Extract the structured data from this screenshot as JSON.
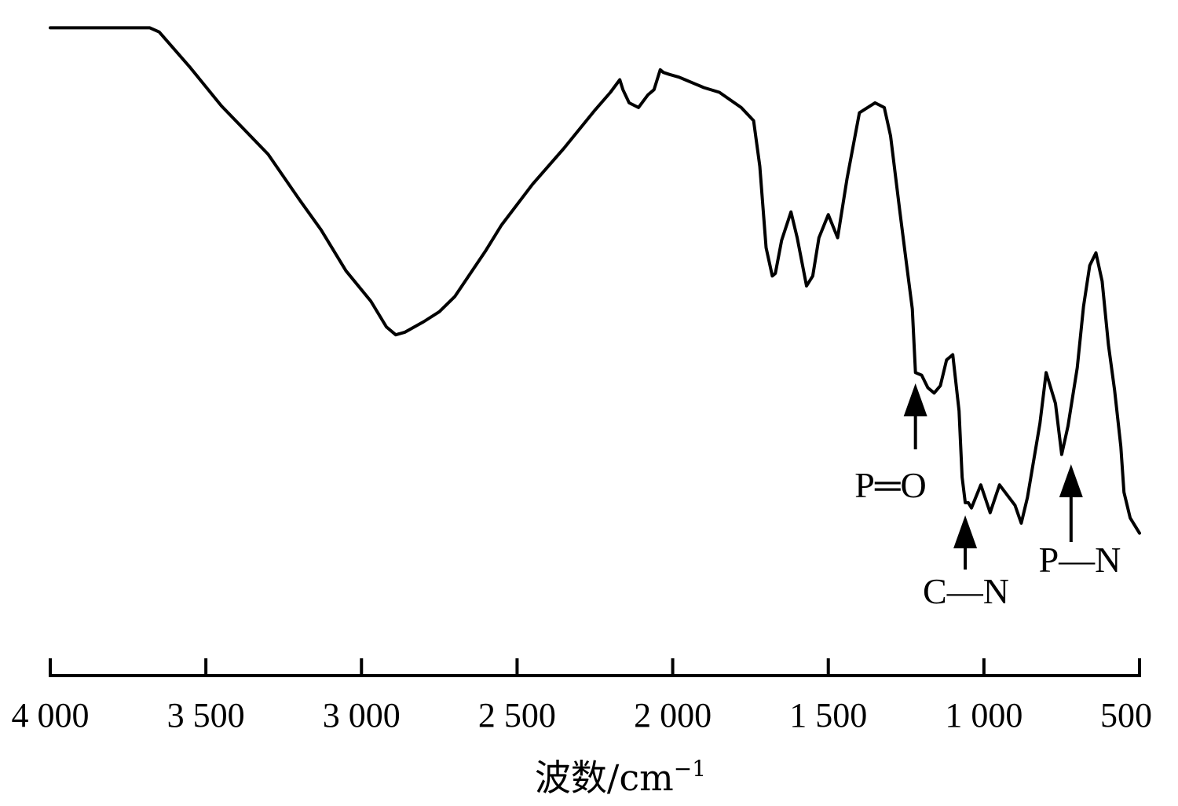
{
  "chart_data": {
    "type": "line",
    "title": "",
    "xlabel": "波数/cm",
    "xlabel_superscript": "−1",
    "ylabel": "",
    "xlim": [
      4000,
      500
    ],
    "x_reversed": true,
    "ylim": [
      0,
      100
    ],
    "grid": false,
    "x_ticks": [
      4000,
      3500,
      3000,
      2500,
      2000,
      1500,
      1000,
      500
    ],
    "x_tick_labels": [
      "4 000",
      "3 500",
      "3 000",
      "2 500",
      "2 000",
      "1 500",
      "1 000",
      "500"
    ],
    "series": [
      {
        "color": "#000000",
        "x": [
          4000,
          3780,
          3680,
          3650,
          3550,
          3450,
          3300,
          3200,
          3130,
          3050,
          2970,
          2920,
          2890,
          2860,
          2800,
          2750,
          2700,
          2600,
          2550,
          2450,
          2350,
          2250,
          2200,
          2170,
          2160,
          2140,
          2110,
          2080,
          2060,
          2040,
          2030,
          2010,
          1980,
          1960,
          1940,
          1900,
          1850,
          1780,
          1740,
          1720,
          1700,
          1680,
          1670,
          1650,
          1620,
          1600,
          1570,
          1550,
          1530,
          1500,
          1470,
          1440,
          1400,
          1350,
          1320,
          1300,
          1270,
          1250,
          1230,
          1220,
          1200,
          1180,
          1160,
          1140,
          1120,
          1100,
          1080,
          1070,
          1060,
          1050,
          1040,
          1010,
          980,
          950,
          900,
          880,
          860,
          820,
          800,
          770,
          750,
          730,
          700,
          680,
          660,
          640,
          620,
          600,
          580,
          560,
          550,
          530,
          500
        ],
        "y": [
          96.8,
          96.8,
          96.8,
          96.0,
          89.2,
          81.9,
          72.7,
          64.1,
          58.3,
          50.5,
          44.7,
          39.8,
          38.3,
          38.8,
          40.8,
          42.7,
          45.6,
          54.4,
          59.2,
          67.0,
          73.8,
          81.1,
          84.5,
          86.9,
          85.0,
          82.5,
          81.6,
          84.0,
          85.0,
          88.8,
          88.3,
          87.9,
          87.4,
          86.9,
          86.4,
          85.4,
          84.5,
          81.6,
          79.1,
          70.4,
          54.9,
          49.5,
          50.0,
          56.3,
          61.7,
          56.8,
          47.6,
          49.5,
          56.8,
          61.2,
          56.8,
          68.0,
          80.6,
          82.5,
          81.6,
          76.2,
          61.7,
          52.4,
          43.2,
          31.1,
          30.6,
          28.2,
          27.2,
          28.6,
          33.5,
          34.5,
          23.8,
          11.2,
          6.3,
          6.3,
          5.3,
          9.7,
          4.4,
          9.7,
          5.8,
          2.4,
          7.3,
          21.4,
          31.1,
          25.2,
          15.5,
          20.9,
          32.0,
          43.7,
          51.5,
          53.9,
          48.5,
          36.4,
          27.7,
          17.0,
          8.3,
          3.4,
          0.5
        ]
      }
    ],
    "annotations": [
      {
        "label": "P═O",
        "x": 1220
      },
      {
        "label": "C—N",
        "x": 1060
      },
      {
        "label": "P—N",
        "x": 720
      }
    ]
  }
}
